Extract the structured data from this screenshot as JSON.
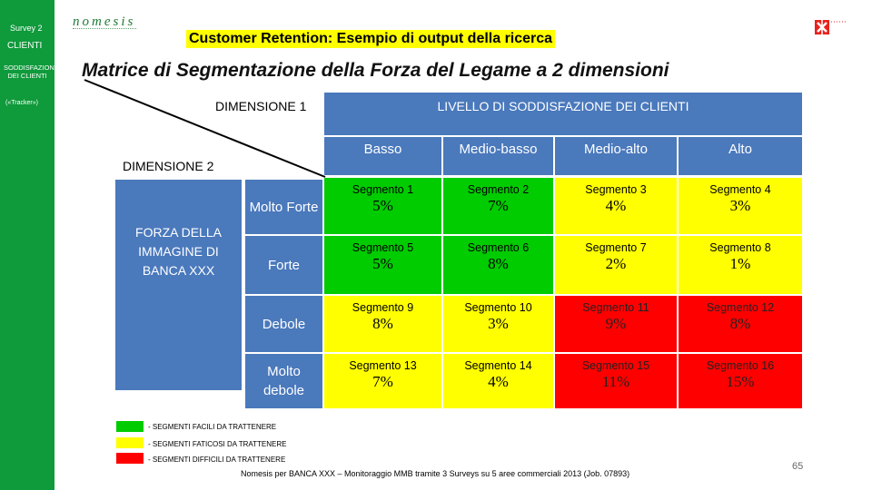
{
  "sidebar": {
    "survey": "Survey 2",
    "section": "CLIENTI",
    "subsection": "SODDISFAZIONE DEI CLIENTI",
    "note": "(«Tracker»)"
  },
  "logo": {
    "text": "nomesis"
  },
  "titles": {
    "top": "Customer Retention: Esempio di output della ricerca",
    "main": "Matrice di Segmentazione della Forza del Legame a 2 dimensioni"
  },
  "matrix": {
    "dimension1": "DIMENSIONE 1",
    "dimension2": "DIMENSIONE 2",
    "dimension1_title": "LIVELLO DI SODDISFAZIONE DEI CLIENTI",
    "dimension2_title": "FORZA DELLA IMMAGINE DI BANCA XXX",
    "columns": [
      "Basso",
      "Medio-basso",
      "Medio-alto",
      "Alto"
    ],
    "rows": [
      {
        "label": "Molto Forte",
        "cells": [
          {
            "segment": "Segmento 1",
            "value": "5%",
            "color": "green"
          },
          {
            "segment": "Segmento 2",
            "value": "7%",
            "color": "green"
          },
          {
            "segment": "Segmento 3",
            "value": "4%",
            "color": "yellow"
          },
          {
            "segment": "Segmento 4",
            "value": "3%",
            "color": "yellow"
          }
        ]
      },
      {
        "label": "Forte",
        "cells": [
          {
            "segment": "Segmento 5",
            "value": "5%",
            "color": "green"
          },
          {
            "segment": "Segmento 6",
            "value": "8%",
            "color": "green"
          },
          {
            "segment": "Segmento 7",
            "value": "2%",
            "color": "yellow"
          },
          {
            "segment": "Segmento 8",
            "value": "1%",
            "color": "yellow"
          }
        ]
      },
      {
        "label": "Debole",
        "cells": [
          {
            "segment": "Segmento 9",
            "value": "8%",
            "color": "yellow"
          },
          {
            "segment": "Segmento 10",
            "value": "3%",
            "color": "yellow"
          },
          {
            "segment": "Segmento 11",
            "value": "9%",
            "color": "red"
          },
          {
            "segment": "Segmento 12",
            "value": "8%",
            "color": "red"
          }
        ]
      },
      {
        "label": "Molto debole",
        "cells": [
          {
            "segment": "Segmento 13",
            "value": "7%",
            "color": "yellow"
          },
          {
            "segment": "Segmento 14",
            "value": "4%",
            "color": "yellow"
          },
          {
            "segment": "Segmento 15",
            "value": "11%",
            "color": "red"
          },
          {
            "segment": "Segmento 16",
            "value": "15%",
            "color": "red"
          }
        ]
      }
    ]
  },
  "legend": [
    {
      "color": "#00cc00",
      "label": "- SEGMENTI FACILI DA TRATTENERE"
    },
    {
      "color": "#ffff00",
      "label": "- SEGMENTI FATICOSI DA TRATTENERE"
    },
    {
      "color": "#ff0000",
      "label": "- SEGMENTI DIFFICILI DA TRATTENERE"
    }
  ],
  "footer": "Nomesis per BANCA XXX – Monitoraggio MMB tramite 3 Surveys su 5 aree commerciali 2013 (Job. 07893)",
  "page_number": "65",
  "colors": {
    "sidebar": "#0f9a3b",
    "header_blue": "#4a79bc",
    "green": "#00cc00",
    "yellow": "#ffff00",
    "red": "#ff0000"
  }
}
